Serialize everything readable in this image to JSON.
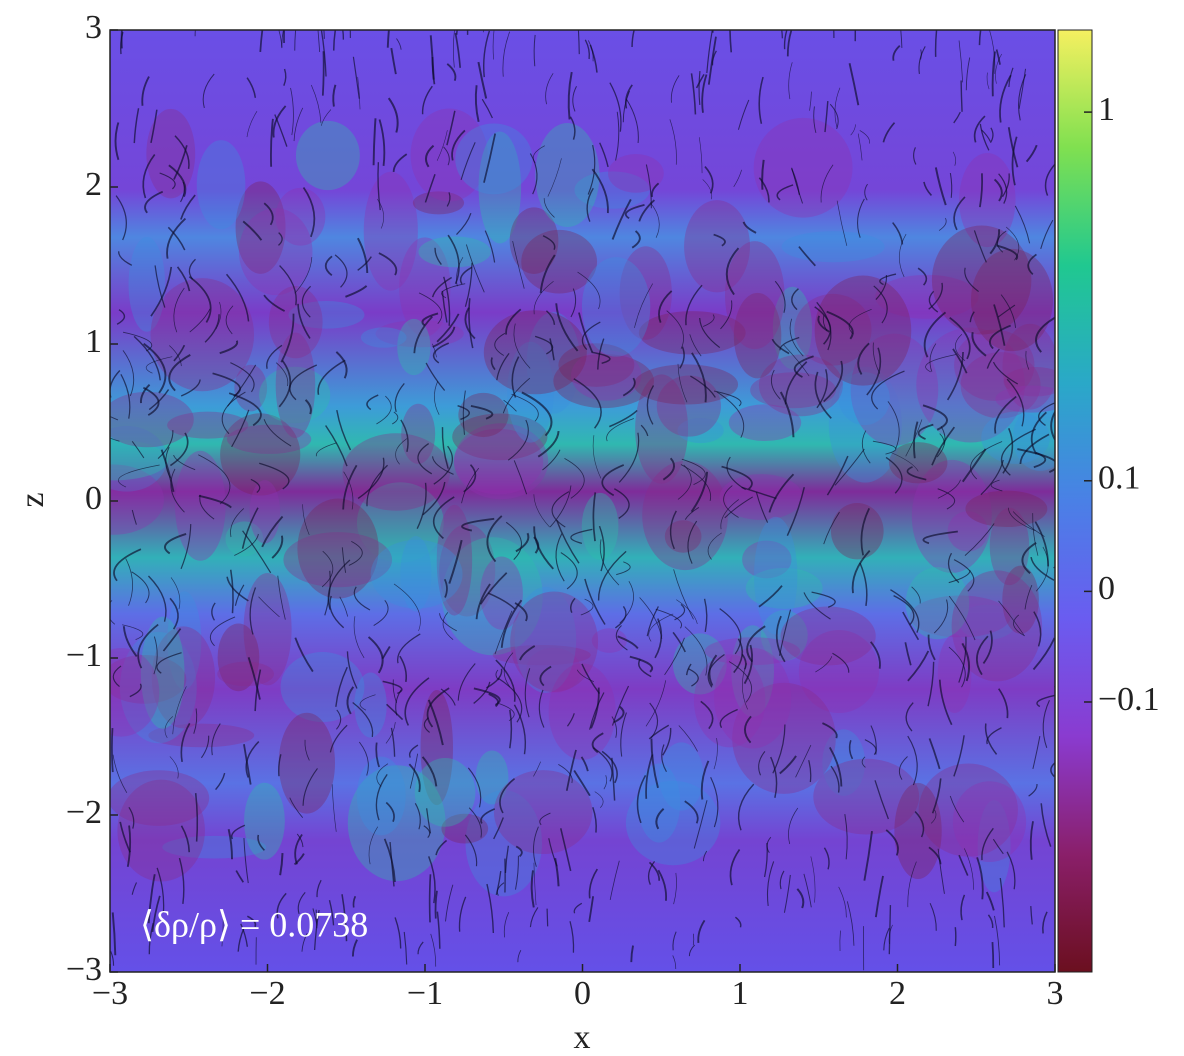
{
  "chart_data": {
    "type": "heatmap",
    "xlabel": "x",
    "ylabel": "z",
    "xlim": [
      -3,
      3
    ],
    "ylim": [
      -3,
      3
    ],
    "xticks": [
      {
        "value": -3,
        "label": "−3"
      },
      {
        "value": -2,
        "label": "−2"
      },
      {
        "value": -1,
        "label": "−1"
      },
      0,
      1,
      2,
      3
    ],
    "yticks": [
      {
        "value": -3,
        "label": "−3"
      },
      {
        "value": -2,
        "label": "−2"
      },
      {
        "value": -1,
        "label": "−1"
      },
      0,
      1,
      2,
      3
    ],
    "annotation": "⟨δρ/ρ⟩ = 0.0738",
    "colorbar": {
      "scale": "symlog",
      "linthresh": 0.1,
      "linscale": 0.3,
      "lim": [
        -0.54,
        1.67
      ],
      "ticks": [
        {
          "value": -0.1,
          "label": "−0.1"
        },
        0,
        0.1,
        1
      ],
      "colormap": [
        "#6b0f1f",
        "#8a1f6a",
        "#8a3bd0",
        "#6a5cf0",
        "#4a80e6",
        "#2aa8c8",
        "#20c890",
        "#80e050",
        "#f5f060"
      ]
    }
  }
}
